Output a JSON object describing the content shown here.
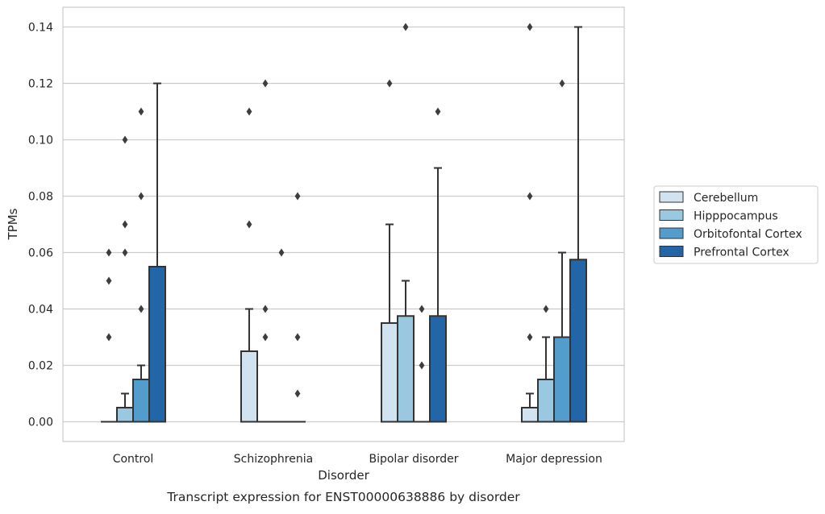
{
  "chart_data": {
    "type": "bar",
    "xlabel": "Disorder",
    "ylabel": "TPMs",
    "caption": "Transcript expression for ENST00000638886 by disorder",
    "ylim": [
      -0.007,
      0.147
    ],
    "yticks": [
      "0.00",
      "0.02",
      "0.04",
      "0.06",
      "0.08",
      "0.10",
      "0.12",
      "0.14"
    ],
    "grid": "horizontal",
    "legend_position": "right",
    "categories": [
      "Control",
      "Schizophrenia",
      "Bipolar disorder",
      "Major depression"
    ],
    "series": [
      {
        "name": "Cerebellum",
        "color": "#d1e2f1",
        "values": [
          0.0,
          0.025,
          0.035,
          0.005
        ],
        "error_top": [
          0.0,
          0.04,
          0.07,
          0.01
        ],
        "outliers": [
          [
            0.03,
            0.05,
            0.06
          ],
          [
            0.07,
            0.11
          ],
          [
            0.12
          ],
          [
            0.03,
            0.08,
            0.14
          ]
        ]
      },
      {
        "name": "Hipppocampus",
        "color": "#9ac8e0",
        "values": [
          0.005,
          0.0,
          0.0375,
          0.015
        ],
        "error_top": [
          0.01,
          0.0,
          0.05,
          0.03
        ],
        "outliers": [
          [
            0.06,
            0.07,
            0.1
          ],
          [
            0.03,
            0.04,
            0.12
          ],
          [
            0.14
          ],
          [
            0.04
          ]
        ]
      },
      {
        "name": "Orbitofontal Cortex",
        "color": "#529dcc",
        "values": [
          0.015,
          0.0,
          0.0,
          0.03
        ],
        "error_top": [
          0.02,
          0.0,
          0.0,
          0.06
        ],
        "outliers": [
          [
            0.04,
            0.08,
            0.11
          ],
          [
            0.06
          ],
          [
            0.02,
            0.04
          ],
          [
            0.12
          ]
        ]
      },
      {
        "name": "Prefrontal Cortex",
        "color": "#2366a8",
        "values": [
          0.055,
          0.0,
          0.0375,
          0.0575
        ],
        "error_top": [
          0.12,
          0.0,
          0.09,
          0.14
        ],
        "outliers": [
          [],
          [
            0.01,
            0.03,
            0.08
          ],
          [
            0.11
          ],
          []
        ]
      }
    ]
  }
}
